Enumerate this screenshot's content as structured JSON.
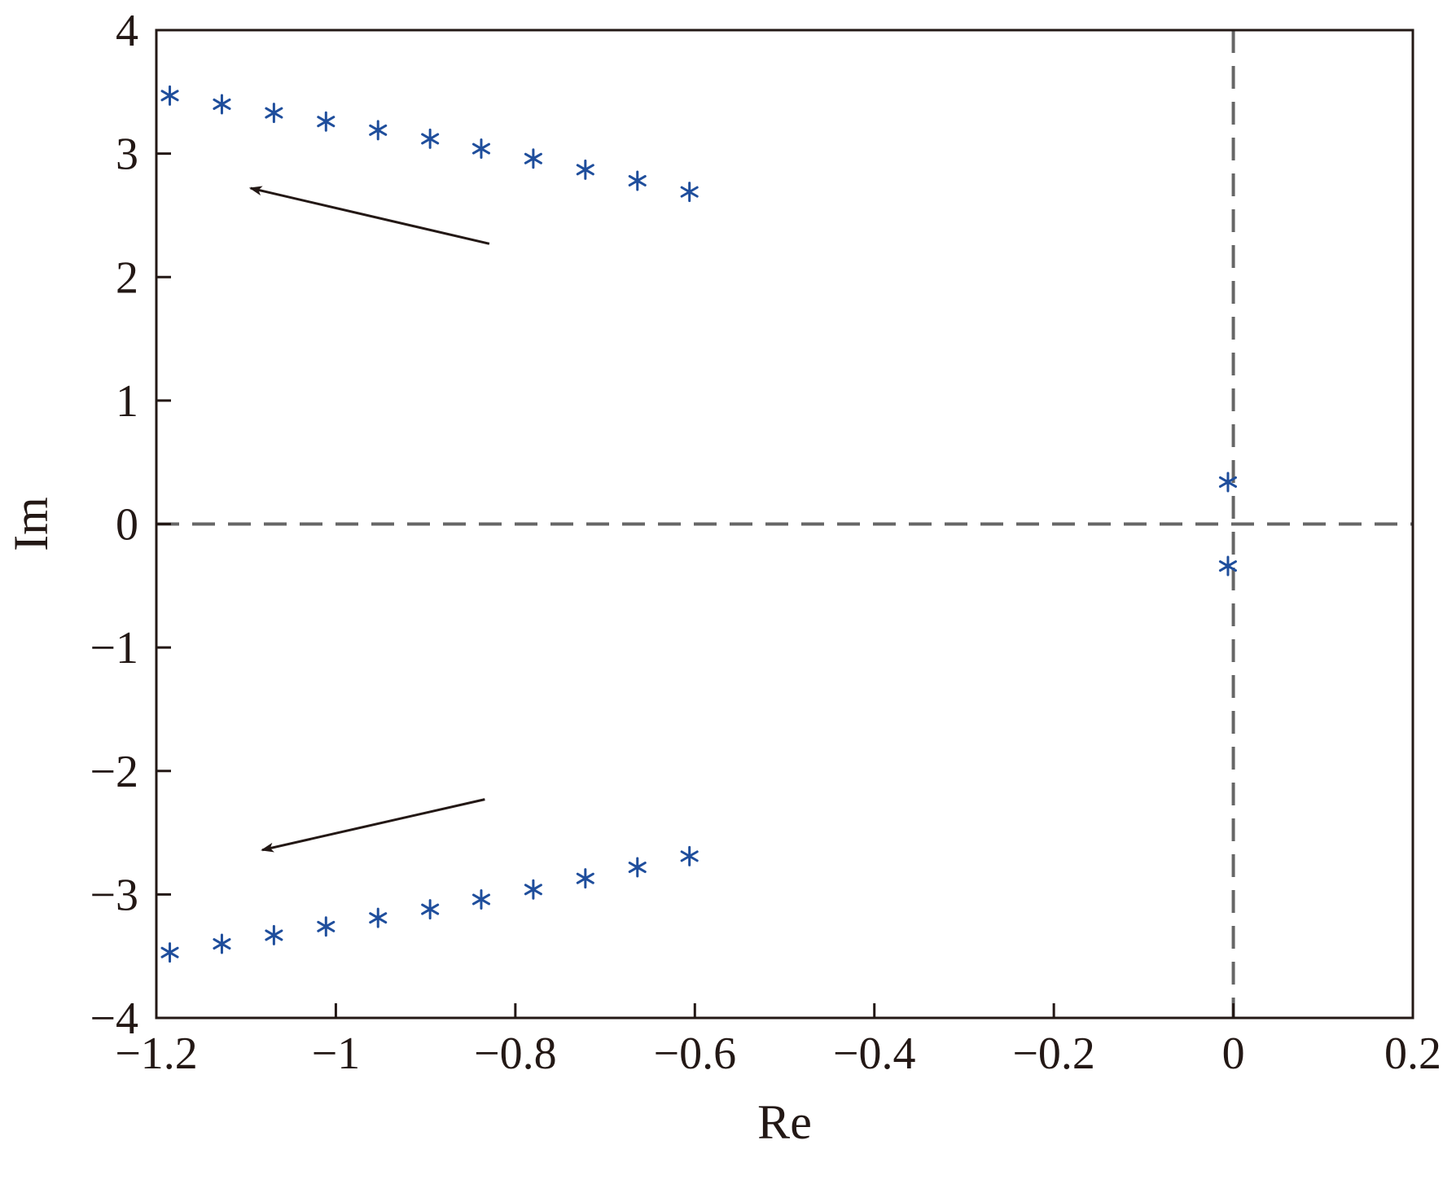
{
  "chart_data": {
    "type": "scatter",
    "title": "",
    "xlabel": "Re",
    "ylabel": "Im",
    "xlim": [
      -1.2,
      0.2
    ],
    "ylim": [
      -4,
      4
    ],
    "x_ticks": [
      -1.2,
      -1,
      -0.8,
      -0.6,
      -0.4,
      -0.2,
      0,
      0.2
    ],
    "x_tick_labels": [
      "−1.2",
      "−1",
      "−0.8",
      "−0.6",
      "−0.4",
      "−0.2",
      "0",
      "0.2"
    ],
    "y_ticks": [
      -4,
      -3,
      -2,
      -1,
      0,
      1,
      2,
      3,
      4
    ],
    "y_tick_labels": [
      "−4",
      "−3",
      "−2",
      "−1",
      "0",
      "1",
      "2",
      "3",
      "4"
    ],
    "grid": false,
    "marker": "asterisk",
    "marker_color": "#1f4e9c",
    "reference_lines": [
      {
        "orientation": "vertical",
        "value": 0,
        "style": "dashed",
        "color": "#666666"
      },
      {
        "orientation": "horizontal",
        "value": 0,
        "style": "dashed",
        "color": "#666666"
      }
    ],
    "series": [
      {
        "x": [
          -1.185,
          -1.127,
          -1.069,
          -1.011,
          -0.953,
          -0.895,
          -0.838,
          -0.78,
          -0.722,
          -0.664,
          -0.606,
          -1.185,
          -1.127,
          -1.069,
          -1.011,
          -0.953,
          -0.895,
          -0.838,
          -0.78,
          -0.722,
          -0.664,
          -0.606,
          -0.006,
          -0.006
        ],
        "y": [
          3.47,
          3.4,
          3.33,
          3.26,
          3.19,
          3.12,
          3.04,
          2.96,
          2.87,
          2.78,
          2.69,
          -3.47,
          -3.4,
          -3.33,
          -3.26,
          -3.19,
          -3.12,
          -3.04,
          -2.96,
          -2.87,
          -2.78,
          -2.69,
          0.34,
          -0.34
        ]
      }
    ],
    "annotations": [
      {
        "type": "arrow",
        "from": [
          -0.829,
          2.27
        ],
        "to": [
          -1.095,
          2.72
        ]
      },
      {
        "type": "arrow",
        "from": [
          -0.834,
          -2.23
        ],
        "to": [
          -1.082,
          -2.64
        ]
      }
    ]
  }
}
